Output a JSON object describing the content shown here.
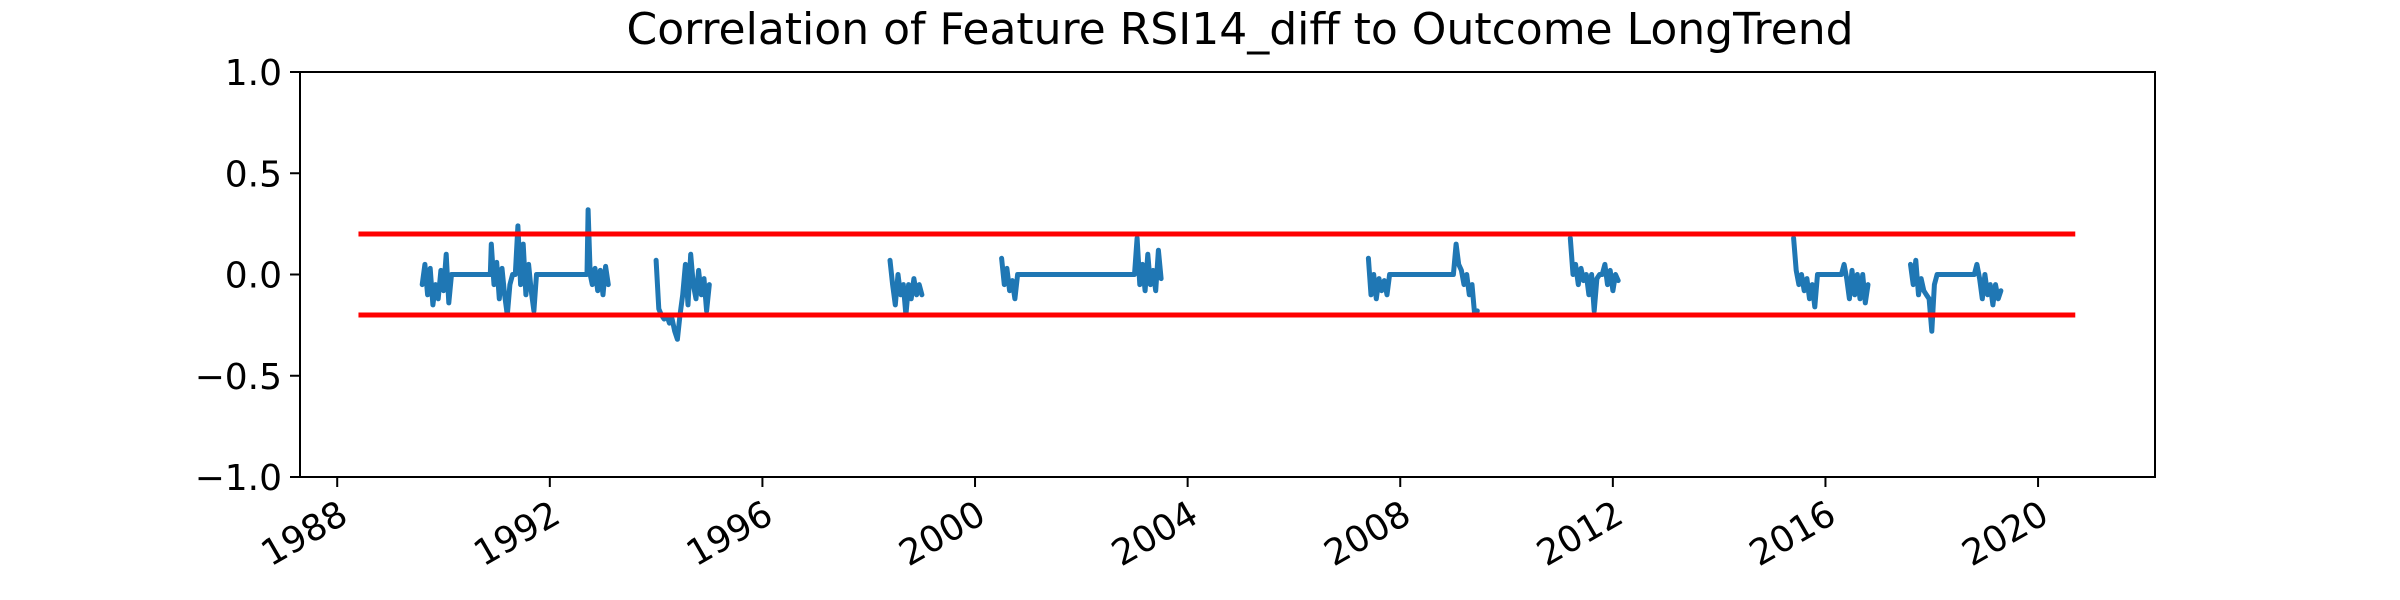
{
  "chart_data": {
    "type": "line",
    "title": "Correlation of Feature RSI14_diff to Outcome LongTrend",
    "xlabel": "",
    "ylabel": "",
    "xlim": [
      1987.3,
      2022.2
    ],
    "ylim": [
      -1.0,
      1.0
    ],
    "x_ticks": [
      1988,
      1992,
      1996,
      2000,
      2004,
      2008,
      2012,
      2016,
      2020
    ],
    "x_tick_labels": [
      "1988",
      "1992",
      "1996",
      "2000",
      "2004",
      "2008",
      "2012",
      "2016",
      "2020"
    ],
    "y_ticks": [
      1.0,
      0.5,
      0.0,
      -0.5,
      -1.0
    ],
    "y_tick_labels": [
      "1.0",
      "0.5",
      "0.0",
      "−0.5",
      "−1.0"
    ],
    "grid": false,
    "thresholds": [
      {
        "y": 0.2,
        "x_start": 1988.4,
        "x_end": 2020.7,
        "color": "#ff0000"
      },
      {
        "y": -0.2,
        "x_start": 1988.4,
        "x_end": 2020.7,
        "color": "#ff0000"
      }
    ],
    "series_color": "#1f77b4",
    "segments": [
      [
        [
          1989.6,
          -0.05
        ],
        [
          1989.65,
          0.05
        ],
        [
          1989.7,
          -0.1
        ],
        [
          1989.75,
          0.03
        ],
        [
          1989.8,
          -0.15
        ],
        [
          1989.85,
          -0.05
        ],
        [
          1989.9,
          -0.12
        ],
        [
          1989.95,
          0.02
        ],
        [
          1990.0,
          -0.08
        ],
        [
          1990.05,
          0.1
        ],
        [
          1990.1,
          -0.14
        ],
        [
          1990.15,
          0.0
        ],
        [
          1990.3,
          0.0
        ],
        [
          1990.5,
          0.0
        ],
        [
          1990.7,
          0.0
        ],
        [
          1990.88,
          0.0
        ],
        [
          1990.9,
          0.15
        ],
        [
          1990.95,
          -0.05
        ],
        [
          1991.0,
          0.06
        ],
        [
          1991.05,
          -0.12
        ],
        [
          1991.1,
          0.03
        ],
        [
          1991.15,
          -0.1
        ],
        [
          1991.2,
          -0.2
        ],
        [
          1991.25,
          -0.05
        ],
        [
          1991.3,
          0.0
        ],
        [
          1991.35,
          0.0
        ],
        [
          1991.4,
          0.24
        ],
        [
          1991.45,
          -0.05
        ],
        [
          1991.5,
          0.15
        ],
        [
          1991.55,
          -0.1
        ],
        [
          1991.6,
          0.05
        ],
        [
          1991.65,
          -0.08
        ],
        [
          1991.7,
          -0.18
        ],
        [
          1991.75,
          0.0
        ],
        [
          1992.0,
          0.0
        ],
        [
          1992.3,
          0.0
        ],
        [
          1992.6,
          0.0
        ],
        [
          1992.7,
          0.0
        ],
        [
          1992.72,
          0.32
        ],
        [
          1992.76,
          0.0
        ],
        [
          1992.8,
          -0.05
        ],
        [
          1992.85,
          0.03
        ],
        [
          1992.9,
          -0.08
        ],
        [
          1992.95,
          0.02
        ],
        [
          1993.0,
          -0.1
        ],
        [
          1993.05,
          0.04
        ],
        [
          1993.1,
          -0.05
        ]
      ],
      [
        [
          1994.0,
          0.07
        ],
        [
          1994.05,
          -0.17
        ],
        [
          1994.1,
          -0.2
        ],
        [
          1994.15,
          -0.22
        ],
        [
          1994.2,
          -0.2
        ],
        [
          1994.25,
          -0.24
        ],
        [
          1994.3,
          -0.22
        ],
        [
          1994.35,
          -0.28
        ],
        [
          1994.4,
          -0.32
        ],
        [
          1994.45,
          -0.2
        ],
        [
          1994.5,
          -0.1
        ],
        [
          1994.55,
          0.05
        ],
        [
          1994.6,
          -0.15
        ],
        [
          1994.65,
          0.1
        ],
        [
          1994.7,
          -0.05
        ],
        [
          1994.75,
          -0.12
        ],
        [
          1994.8,
          0.02
        ],
        [
          1994.85,
          -0.1
        ],
        [
          1994.9,
          -0.02
        ],
        [
          1994.95,
          -0.18
        ],
        [
          1995.0,
          -0.05
        ]
      ],
      [
        [
          1998.4,
          0.07
        ],
        [
          1998.45,
          -0.05
        ],
        [
          1998.5,
          -0.15
        ],
        [
          1998.55,
          0.0
        ],
        [
          1998.6,
          -0.1
        ],
        [
          1998.65,
          -0.05
        ],
        [
          1998.7,
          -0.2
        ],
        [
          1998.75,
          -0.05
        ],
        [
          1998.8,
          -0.12
        ],
        [
          1998.85,
          -0.02
        ],
        [
          1998.9,
          -0.1
        ],
        [
          1998.95,
          -0.05
        ],
        [
          1999.0,
          -0.1
        ]
      ],
      [
        [
          2000.5,
          0.08
        ],
        [
          2000.55,
          -0.05
        ],
        [
          2000.6,
          0.03
        ],
        [
          2000.65,
          -0.08
        ],
        [
          2000.7,
          -0.03
        ],
        [
          2000.75,
          -0.12
        ],
        [
          2000.8,
          0.0
        ],
        [
          2000.9,
          0.0
        ],
        [
          2001.5,
          0.0
        ],
        [
          2002.0,
          0.0
        ],
        [
          2002.5,
          0.0
        ],
        [
          2003.0,
          0.0
        ],
        [
          2003.05,
          0.18
        ],
        [
          2003.1,
          -0.05
        ],
        [
          2003.15,
          0.05
        ],
        [
          2003.2,
          -0.08
        ],
        [
          2003.25,
          0.1
        ],
        [
          2003.3,
          -0.05
        ],
        [
          2003.35,
          0.02
        ],
        [
          2003.4,
          -0.08
        ],
        [
          2003.45,
          0.12
        ],
        [
          2003.5,
          -0.02
        ]
      ],
      [
        [
          2007.4,
          0.08
        ],
        [
          2007.45,
          -0.1
        ],
        [
          2007.5,
          0.0
        ],
        [
          2007.55,
          -0.12
        ],
        [
          2007.6,
          -0.02
        ],
        [
          2007.65,
          -0.08
        ],
        [
          2007.7,
          -0.03
        ],
        [
          2007.75,
          -0.1
        ],
        [
          2007.8,
          0.0
        ],
        [
          2008.2,
          0.0
        ],
        [
          2008.8,
          0.0
        ],
        [
          2009.0,
          0.0
        ],
        [
          2009.05,
          0.15
        ],
        [
          2009.1,
          0.05
        ],
        [
          2009.15,
          0.02
        ],
        [
          2009.2,
          -0.05
        ],
        [
          2009.25,
          0.0
        ],
        [
          2009.3,
          -0.1
        ],
        [
          2009.35,
          -0.05
        ],
        [
          2009.4,
          -0.2
        ],
        [
          2009.45,
          -0.18
        ]
      ],
      [
        [
          2011.2,
          0.18
        ],
        [
          2011.25,
          0.0
        ],
        [
          2011.3,
          0.05
        ],
        [
          2011.35,
          -0.05
        ],
        [
          2011.4,
          0.03
        ],
        [
          2011.45,
          -0.03
        ],
        [
          2011.5,
          0.0
        ],
        [
          2011.55,
          -0.1
        ],
        [
          2011.6,
          0.0
        ],
        [
          2011.65,
          -0.18
        ],
        [
          2011.7,
          -0.02
        ],
        [
          2011.75,
          0.0
        ],
        [
          2011.8,
          0.0
        ],
        [
          2011.85,
          0.05
        ],
        [
          2011.9,
          -0.05
        ],
        [
          2011.95,
          0.02
        ],
        [
          2012.0,
          -0.08
        ],
        [
          2012.05,
          0.0
        ],
        [
          2012.1,
          -0.03
        ]
      ],
      [
        [
          2015.4,
          0.18
        ],
        [
          2015.45,
          0.02
        ],
        [
          2015.5,
          -0.05
        ],
        [
          2015.55,
          0.0
        ],
        [
          2015.6,
          -0.08
        ],
        [
          2015.65,
          -0.02
        ],
        [
          2015.7,
          -0.12
        ],
        [
          2015.75,
          -0.05
        ],
        [
          2015.8,
          -0.16
        ],
        [
          2015.85,
          0.0
        ],
        [
          2016.0,
          0.0
        ],
        [
          2016.3,
          0.0
        ],
        [
          2016.35,
          0.05
        ],
        [
          2016.4,
          -0.02
        ],
        [
          2016.45,
          -0.12
        ],
        [
          2016.5,
          0.02
        ],
        [
          2016.55,
          -0.1
        ],
        [
          2016.6,
          0.0
        ],
        [
          2016.65,
          -0.12
        ],
        [
          2016.7,
          0.0
        ],
        [
          2016.75,
          -0.14
        ],
        [
          2016.8,
          -0.05
        ]
      ],
      [
        [
          2017.6,
          0.05
        ],
        [
          2017.65,
          -0.05
        ],
        [
          2017.7,
          0.07
        ],
        [
          2017.75,
          -0.1
        ],
        [
          2017.8,
          -0.02
        ],
        [
          2017.85,
          -0.08
        ],
        [
          2017.9,
          -0.1
        ],
        [
          2017.95,
          -0.12
        ],
        [
          2018.0,
          -0.28
        ],
        [
          2018.05,
          -0.05
        ],
        [
          2018.1,
          0.0
        ],
        [
          2018.3,
          0.0
        ],
        [
          2018.6,
          0.0
        ],
        [
          2018.8,
          0.0
        ],
        [
          2018.85,
          0.05
        ],
        [
          2018.9,
          -0.02
        ],
        [
          2018.95,
          -0.12
        ],
        [
          2019.0,
          0.0
        ],
        [
          2019.05,
          -0.1
        ],
        [
          2019.1,
          -0.05
        ],
        [
          2019.15,
          -0.15
        ],
        [
          2019.2,
          -0.05
        ],
        [
          2019.25,
          -0.12
        ],
        [
          2019.3,
          -0.08
        ]
      ]
    ]
  }
}
